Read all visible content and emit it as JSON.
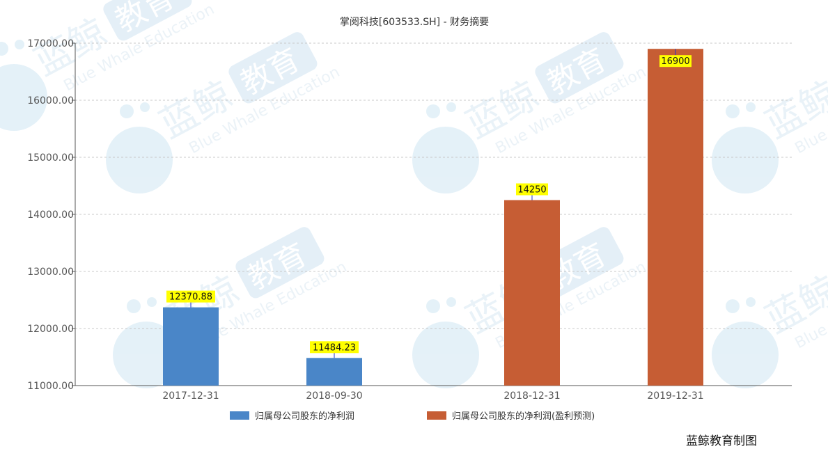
{
  "chart_data": {
    "type": "bar",
    "title": "掌阅科技[603533.SH] - 财务摘要",
    "categories": [
      "2017-12-31",
      "2018-09-30",
      "2018-12-31",
      "2019-12-31"
    ],
    "series": [
      {
        "name": "归属母公司股东的净利润",
        "color": "#4a86c8",
        "values": [
          12370.88,
          11484.23,
          null,
          null
        ],
        "labels": [
          "12370.88",
          "11484.23",
          null,
          null
        ]
      },
      {
        "name": "归属母公司股东的净利润(盈利预测)",
        "color": "#c65d34",
        "values": [
          null,
          null,
          14250,
          16900
        ],
        "labels": [
          null,
          null,
          "14250",
          "16900"
        ]
      }
    ],
    "ylim": [
      11000,
      17000
    ],
    "yticks": [
      "11000.00",
      "12000.00",
      "13000.00",
      "14000.00",
      "15000.00",
      "16000.00",
      "17000.00"
    ],
    "grid": true,
    "legend_position": "bottom",
    "label_bg": "#ffff00"
  },
  "watermark": {
    "cn": "蓝鲸",
    "badge": "教育",
    "en": "Blue Whale Education"
  },
  "credit": "蓝鲸教育制图"
}
